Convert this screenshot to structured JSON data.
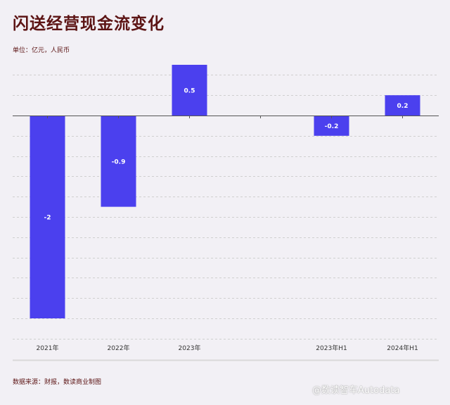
{
  "title": "闪送经营现金流变化",
  "unit_label": "单位：亿元，人民币",
  "source_label": "数据来源：财报，数读商业制图",
  "watermark": "@数读智车Autodata",
  "colors": {
    "bar": "#4b40ee",
    "title": "#5c1414",
    "axis": "#555555",
    "grid": "#cfcfcf",
    "background": "#f2f0f5"
  },
  "chart_data": {
    "type": "bar",
    "categories": [
      "2021年",
      "2022年",
      "2023年",
      "",
      "2023年H1",
      "2024年H1"
    ],
    "values": [
      -2,
      -0.9,
      0.5,
      null,
      -0.2,
      0.2
    ],
    "data_labels": [
      "-2",
      "-0.9",
      "0.5",
      "",
      "-0.2",
      "0.2"
    ],
    "ylim": [
      -2.2,
      0.6
    ],
    "grid": true,
    "legend": "none"
  }
}
